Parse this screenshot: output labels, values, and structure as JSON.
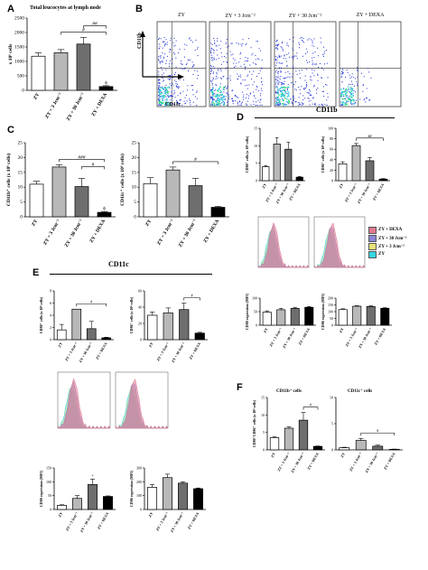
{
  "panels": {
    "A": {
      "letter": "A",
      "title": "Total leucocytes at lymph node"
    },
    "B": {
      "letter": "B",
      "xlabel": "CD11c",
      "ylabel": "CD11b",
      "plots": [
        "ZY",
        "ZY + 3 Jcm⁻²",
        "ZY + 30 Jcm⁻²",
        "ZY + DEXA"
      ]
    },
    "C": {
      "letter": "C"
    },
    "D": {
      "letter": "D",
      "header": "CD11b"
    },
    "E": {
      "letter": "E",
      "header": "CD11c"
    },
    "F": {
      "letter": "F",
      "title_left": "CD11b⁺ cells",
      "title_right": "CD11c⁺ cells"
    }
  },
  "legend": {
    "items": [
      {
        "label": "ZY + DEXA",
        "color": "#e07a8f"
      },
      {
        "label": "ZY + 30 Jcm⁻²",
        "color": "#8a86d8"
      },
      {
        "label": "ZY + 3 Jcm⁻²",
        "color": "#e8e27a"
      },
      {
        "label": "ZY",
        "color": "#34d7e0"
      }
    ]
  },
  "chart_data": [
    {
      "id": "A",
      "type": "bar",
      "categories": [
        "ZY",
        "ZY + 3 Jcm⁻²",
        "ZY + 30 Jcm⁻²",
        "ZY + DEXA"
      ],
      "values": [
        1180,
        1300,
        1600,
        130
      ],
      "errors": [
        120,
        110,
        230,
        30
      ],
      "ylabel": "x 10⁶ cells",
      "ylim": [
        0,
        2500
      ],
      "yticks": [
        0,
        500,
        1000,
        1500,
        2000,
        2500
      ],
      "sig": [
        {
          "label": "#",
          "from": 1,
          "to": 3
        },
        {
          "label": "##",
          "from": 2,
          "to": 3
        }
      ],
      "marks": [
        {
          "bar": 3,
          "label": "ϕ"
        }
      ]
    },
    {
      "id": "C1",
      "type": "bar",
      "categories": [
        "ZY",
        "ZY + 3 Jcm⁻²",
        "ZY + 30 Jcm⁻²",
        "ZY + DEXA"
      ],
      "values": [
        11,
        16.8,
        10.2,
        1.5
      ],
      "errors": [
        1,
        0.8,
        2.8,
        0.3
      ],
      "ylabel": "CD11b⁺ cells (x 10⁶ cells)",
      "ylim": [
        0,
        25
      ],
      "yticks": [
        0,
        5,
        10,
        15,
        20,
        25
      ],
      "sig": [
        {
          "label": "###",
          "from": 1,
          "to": 3
        },
        {
          "label": "#",
          "from": 2,
          "to": 3
        }
      ],
      "marks": [
        {
          "bar": 3,
          "label": "ϕ"
        }
      ]
    },
    {
      "id": "C2",
      "type": "bar",
      "categories": [
        "ZY",
        "ZY + 3 Jcm⁻²",
        "ZY + 30 Jcm⁻²",
        "ZY + DEXA"
      ],
      "values": [
        11.2,
        15.8,
        10.5,
        3.2
      ],
      "errors": [
        2,
        1,
        2.5,
        0.3
      ],
      "ylabel": "CD11c⁺ cells (x 10⁶ cells)",
      "ylim": [
        0,
        25
      ],
      "yticks": [
        0,
        5,
        10,
        15,
        20,
        25
      ],
      "sig": [
        {
          "label": "#",
          "from": 1,
          "to": 3
        }
      ],
      "marks": []
    },
    {
      "id": "D1",
      "type": "bar",
      "categories": [
        "ZY",
        "ZY + 3 Jcm⁻²",
        "ZY + 30 Jcm⁻²",
        "ZY + DEXA"
      ],
      "values": [
        4,
        10.5,
        9,
        1
      ],
      "errors": [
        0.3,
        1.8,
        2,
        0.2
      ],
      "ylabel": "CD80⁺ cells (x 10⁶ cells)",
      "ylim": [
        0,
        15
      ],
      "yticks": [
        0,
        5,
        10,
        15
      ],
      "sig": [],
      "marks": []
    },
    {
      "id": "D2",
      "type": "bar",
      "categories": [
        "ZY",
        "ZY + 3 Jcm⁻²",
        "ZY + 30 Jcm⁻²",
        "ZY + DEXA"
      ],
      "values": [
        32,
        67,
        38,
        3
      ],
      "errors": [
        4,
        4,
        6,
        1
      ],
      "ylabel": "CD86⁺ cells (x 10⁶ cells)",
      "ylim": [
        0,
        100
      ],
      "yticks": [
        0,
        20,
        40,
        60,
        80,
        100
      ],
      "sig": [
        {
          "label": "##",
          "from": 1,
          "to": 3
        }
      ],
      "marks": []
    },
    {
      "id": "D3",
      "type": "bar",
      "categories": [
        "ZY",
        "ZY + 3 Jcm⁻²",
        "ZY + 30 Jcm⁻²",
        "ZY + DEXA"
      ],
      "values": [
        48,
        57,
        62,
        66
      ],
      "errors": [
        5,
        5,
        4,
        3
      ],
      "ylabel": "CD80 expression (MFI)",
      "ylim": [
        0,
        100
      ],
      "yticks": [
        0,
        50,
        100
      ],
      "sig": [],
      "marks": []
    },
    {
      "id": "D4",
      "type": "bar",
      "categories": [
        "ZY",
        "ZY + 3 Jcm⁻²",
        "ZY + 30 Jcm⁻²",
        "ZY + DEXA"
      ],
      "values": [
        115,
        140,
        138,
        125
      ],
      "errors": [
        6,
        4,
        5,
        4
      ],
      "ylabel": "CD86 expression (MFI)",
      "ylim": [
        0,
        200
      ],
      "yticks": [
        0,
        50,
        100,
        150,
        200
      ],
      "sig": [],
      "marks": []
    },
    {
      "id": "E1",
      "type": "bar",
      "categories": [
        "ZY",
        "ZY + 3 Jcm⁻²",
        "ZY + 30 Jcm⁻²",
        "ZY + DEXA"
      ],
      "values": [
        1.6,
        5,
        1.8,
        0.3
      ],
      "errors": [
        0.9,
        0,
        1.2,
        0.1
      ],
      "ylabel": "CD80⁺ cells (x 10⁶ cells)",
      "ylim": [
        0,
        8
      ],
      "yticks": [
        0,
        2,
        4,
        6,
        8
      ],
      "sig": [
        {
          "label": "#",
          "from": 1,
          "to": 3
        }
      ],
      "marks": []
    },
    {
      "id": "E2",
      "type": "bar",
      "categories": [
        "ZY",
        "ZY + 3 Jcm⁻²",
        "ZY + 30 Jcm⁻²",
        "ZY + DEXA"
      ],
      "values": [
        30,
        33,
        37,
        8
      ],
      "errors": [
        4,
        6,
        8,
        1
      ],
      "ylabel": "CD86⁺ cells (x 10⁶ cells)",
      "ylim": [
        0,
        60
      ],
      "yticks": [
        0,
        20,
        40,
        60
      ],
      "sig": [
        {
          "label": "#",
          "from": 2,
          "to": 3
        }
      ],
      "marks": []
    },
    {
      "id": "E3",
      "type": "bar",
      "categories": [
        "ZY",
        "ZY + 3 Jcm⁻²",
        "ZY + 30 Jcm⁻²",
        "ZY + DEXA"
      ],
      "values": [
        15,
        40,
        90,
        47
      ],
      "errors": [
        2,
        10,
        20,
        2
      ],
      "ylabel": "CD80 expression (MFI)",
      "ylim": [
        0,
        150
      ],
      "yticks": [
        0,
        50,
        100,
        150
      ],
      "sig": [],
      "marks": [
        {
          "bar": 2,
          "label": "*"
        }
      ]
    },
    {
      "id": "E4",
      "type": "bar",
      "categories": [
        "ZY",
        "ZY + 3 Jcm⁻²",
        "ZY + 30 Jcm⁻²",
        "ZY + DEXA"
      ],
      "values": [
        160,
        230,
        190,
        150
      ],
      "errors": [
        20,
        25,
        10,
        5
      ],
      "ylabel": "CD86 expression (MFI)",
      "ylim": [
        0,
        300
      ],
      "yticks": [
        0,
        100,
        200,
        300
      ],
      "sig": [],
      "marks": []
    },
    {
      "id": "F1",
      "type": "bar",
      "categories": [
        "ZY",
        "ZY + 3 Jcm⁻²",
        "ZY + 30 Jcm⁻²",
        "ZY + DEXA"
      ],
      "values": [
        3.5,
        6.2,
        8.5,
        1
      ],
      "errors": [
        0.2,
        0.4,
        2.2,
        0.1
      ],
      "ylabel": "CD80⁺CD86⁺ cells (x 10⁶ cells)",
      "ylim": [
        0,
        15
      ],
      "yticks": [
        0,
        5,
        10,
        15
      ],
      "sig": [
        {
          "label": "#",
          "from": 2,
          "to": 3
        }
      ],
      "marks": []
    },
    {
      "id": "F2",
      "type": "bar",
      "categories": [
        "ZY",
        "ZY + 3 Jcm⁻²",
        "ZY + 30 Jcm⁻²",
        "ZY + DEXA"
      ],
      "values": [
        0.4,
        1.8,
        0.7,
        0.1
      ],
      "errors": [
        0.1,
        0.4,
        0.2,
        0.05
      ],
      "ylabel": "",
      "ylim": [
        0,
        10
      ],
      "yticks": [
        0,
        5,
        10
      ],
      "sig": [
        {
          "label": "#",
          "from": 1,
          "to": 3
        }
      ],
      "marks": []
    }
  ]
}
